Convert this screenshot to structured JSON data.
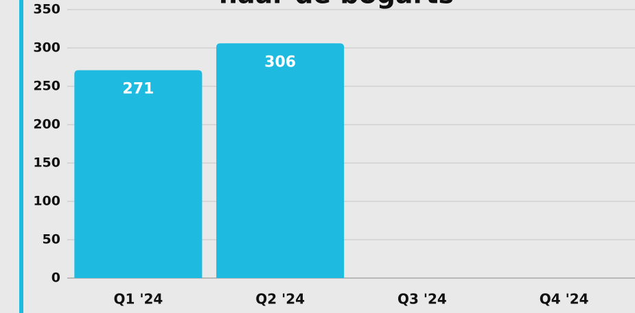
{
  "chart_data": {
    "type": "bar",
    "title": "naar de bogarts",
    "categories": [
      "Q1 '24",
      "Q2 '24",
      "Q3 '24",
      "Q4 '24"
    ],
    "values": [
      271,
      306,
      null,
      null
    ],
    "color": "#1fbae0",
    "ylim": [
      0,
      350
    ],
    "yticks": [
      0,
      50,
      100,
      150,
      200,
      250,
      300,
      350
    ],
    "grid": true
  }
}
